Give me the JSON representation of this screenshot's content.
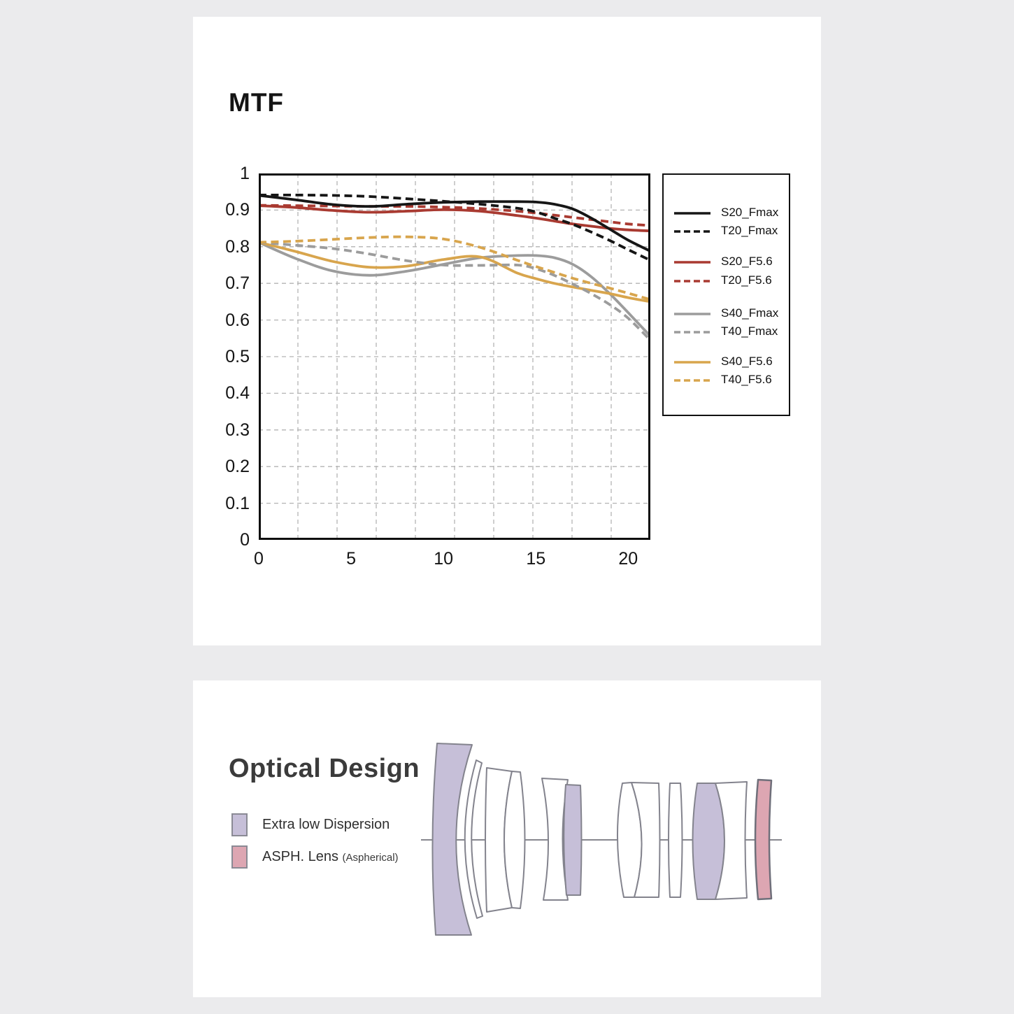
{
  "page": {
    "background": "#ebebed",
    "card_color": "#ffffff"
  },
  "mtf_section": {
    "title": "MTF",
    "chart_data": {
      "type": "line",
      "title": "MTF",
      "xlabel": "",
      "ylabel": "",
      "xlim": [
        0,
        21.2
      ],
      "ylim": [
        0,
        1
      ],
      "x_ticks": [
        0,
        5,
        10,
        15,
        20
      ],
      "y_ticks": [
        "1",
        "0.9",
        "0.8",
        "0.7",
        "0.6",
        "0.5",
        "0.4",
        "0.3",
        "0.2",
        "0.1",
        "0"
      ],
      "y_tick_values": [
        1,
        0.9,
        0.8,
        0.7,
        0.6,
        0.5,
        0.4,
        0.3,
        0.2,
        0.1,
        0
      ],
      "grid": "dashed",
      "grid_color": "#b3b3b3",
      "legend_position": "right",
      "x": [
        0,
        2,
        4,
        6,
        8,
        10,
        12,
        14,
        15,
        16,
        17,
        18,
        19,
        20,
        21.2
      ],
      "series": [
        {
          "name": "S20_Fmax",
          "color": "#161616",
          "style": "solid",
          "values": [
            0.94,
            0.928,
            0.915,
            0.91,
            0.916,
            0.921,
            0.923,
            0.923,
            0.922,
            0.916,
            0.903,
            0.878,
            0.848,
            0.818,
            0.788
          ]
        },
        {
          "name": "T20_Fmax",
          "color": "#161616",
          "style": "dashed",
          "values": [
            0.941,
            0.941,
            0.94,
            0.937,
            0.931,
            0.924,
            0.916,
            0.905,
            0.895,
            0.878,
            0.861,
            0.84,
            0.817,
            0.792,
            0.763
          ]
        },
        {
          "name": "S20_F5.6",
          "color": "#a93a31",
          "style": "solid",
          "values": [
            0.912,
            0.907,
            0.899,
            0.894,
            0.897,
            0.901,
            0.897,
            0.885,
            0.878,
            0.87,
            0.862,
            0.856,
            0.85,
            0.846,
            0.843
          ]
        },
        {
          "name": "T20_F5.6",
          "color": "#a93a31",
          "style": "dashed",
          "values": [
            0.913,
            0.912,
            0.911,
            0.91,
            0.91,
            0.908,
            0.904,
            0.897,
            0.892,
            0.886,
            0.88,
            0.874,
            0.868,
            0.862,
            0.858
          ]
        },
        {
          "name": "S40_Fmax",
          "color": "#9c9c9c",
          "style": "solid",
          "values": [
            0.812,
            0.768,
            0.734,
            0.722,
            0.733,
            0.752,
            0.77,
            0.776,
            0.776,
            0.77,
            0.752,
            0.718,
            0.672,
            0.62,
            0.556
          ]
        },
        {
          "name": "T40_Fmax",
          "color": "#9c9c9c",
          "style": "dashed",
          "values": [
            0.812,
            0.804,
            0.795,
            0.78,
            0.762,
            0.75,
            0.749,
            0.75,
            0.74,
            0.722,
            0.698,
            0.672,
            0.642,
            0.605,
            0.545
          ]
        },
        {
          "name": "S40_F5.6",
          "color": "#d8a54d",
          "style": "solid",
          "values": [
            0.812,
            0.787,
            0.76,
            0.744,
            0.747,
            0.765,
            0.772,
            0.728,
            0.713,
            0.7,
            0.69,
            0.681,
            0.672,
            0.661,
            0.65
          ]
        },
        {
          "name": "T40_F5.6",
          "color": "#d8a54d",
          "style": "dashed",
          "values": [
            0.812,
            0.815,
            0.82,
            0.825,
            0.827,
            0.821,
            0.798,
            0.763,
            0.746,
            0.73,
            0.714,
            0.7,
            0.687,
            0.673,
            0.656
          ]
        }
      ]
    }
  },
  "optical_section": {
    "title": "Optical Design",
    "legend": [
      {
        "label": "Extra low Dispersion",
        "color": "#c6bfd8"
      },
      {
        "label": "ASPH. Lens",
        "label_suffix": "(Aspherical)",
        "color": "#dda6b2"
      }
    ],
    "diagram": {
      "purple_fill": "#c6bfd8",
      "pink_fill": "#dda6b2",
      "element_stroke": "#83838d",
      "axis_color": "#76767e",
      "element_count": 12,
      "ed_element_count": 3,
      "asph_element_count": 1
    }
  }
}
